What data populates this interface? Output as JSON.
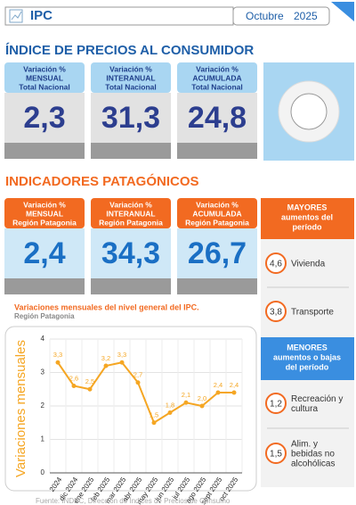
{
  "header": {
    "title": "IPC",
    "month": "Octubre",
    "year": "2025"
  },
  "national": {
    "title": "ÍNDICE DE PRECIOS AL CONSUMIDOR",
    "cards": [
      {
        "label1": "Variación %",
        "label2": "MENSUAL",
        "label3": "Total Nacional",
        "value": "2,3"
      },
      {
        "label1": "Variación %",
        "label2": "INTERANUAL",
        "label3": "Total Nacional",
        "value": "31,3"
      },
      {
        "label1": "Variación %",
        "label2": "ACUMULADA",
        "label3": "Total Nacional",
        "value": "24,8"
      }
    ]
  },
  "patagonia": {
    "title": "INDICADORES PATAGÓNICOS",
    "cards": [
      {
        "label1": "Variación %",
        "label2": "MENSUAL",
        "label3": "Región Patagonia",
        "value": "2,4"
      },
      {
        "label1": "Variación %",
        "label2": "INTERANUAL",
        "label3": "Región Patagonia",
        "value": "34,3"
      },
      {
        "label1": "Variación %",
        "label2": "ACUMULADA",
        "label3": "Región Patagonia",
        "value": "26,7"
      }
    ]
  },
  "rankings": {
    "top": {
      "title1": "MAYORES",
      "title2": "aumentos del",
      "title3": "período",
      "items": [
        {
          "value": "4,6",
          "name": "Vivienda"
        },
        {
          "value": "3,8",
          "name": "Transporte"
        }
      ]
    },
    "bottom": {
      "title1": "MENORES",
      "title2": "aumentos o bajas",
      "title3": "del período",
      "items": [
        {
          "value": "1,2",
          "name1": "Recreación y",
          "name2": "cultura"
        },
        {
          "value": "1,5",
          "name1": "Alim. y",
          "name2": "bebidas no",
          "name3": "alcohólicas"
        }
      ]
    }
  },
  "chart_data": {
    "type": "line",
    "title": "Variaciones mensuales del nivel general del IPC.",
    "subtitle": "Región Patagonia",
    "y_label": "Variaciones mensuales",
    "categories": [
      "2024",
      "dic 2024",
      "ene 2025",
      "feb 2025",
      "mar 2025",
      "abr 2025",
      "may 2025",
      "jun 2025",
      "jul 2025",
      "ago 2025",
      "sept 2025",
      "oct 2025"
    ],
    "series": [
      {
        "color": "#f5a623",
        "values": [
          3.3,
          2.6,
          2.5,
          3.2,
          3.3,
          2.7,
          1.5,
          1.8,
          2.1,
          2.0,
          2.4,
          2.4
        ],
        "value_labels": [
          "3,3",
          "2,6",
          "2,5",
          "3,2",
          "3,3",
          "2,7",
          "1,5",
          "1,8",
          "2,1",
          "2,0",
          "2,4",
          "2,4"
        ]
      }
    ],
    "ylim": [
      0,
      4
    ],
    "yticks": [
      0,
      1,
      2,
      3,
      4
    ],
    "grid": true
  },
  "source": "Fuente: INDEC, Dirección de Índices de Precios de Consumo"
}
